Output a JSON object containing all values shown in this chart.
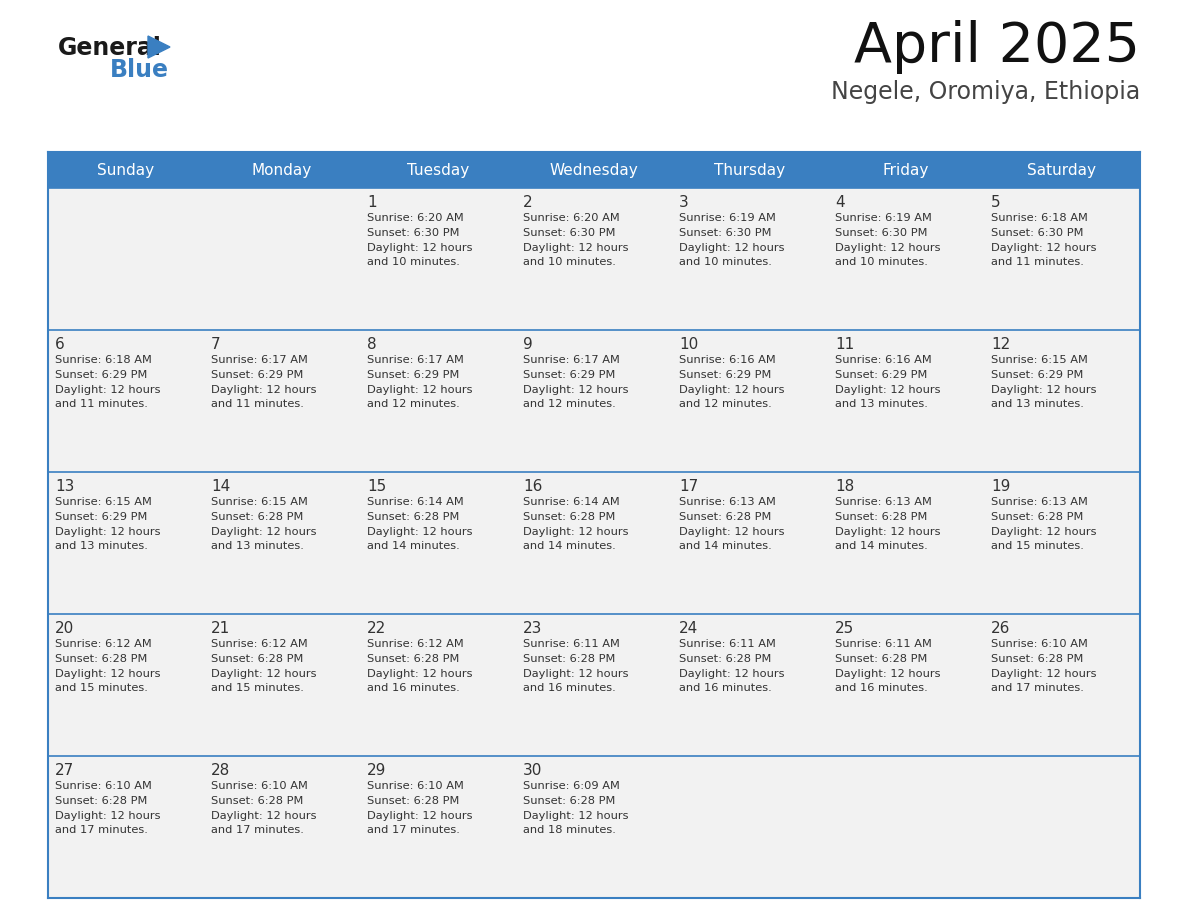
{
  "title": "April 2025",
  "subtitle": "Negele, Oromiya, Ethiopia",
  "header_bg_color": "#3a7fc1",
  "header_text_color": "#ffffff",
  "cell_bg_color": "#f2f2f2",
  "cell_text_color": "#333333",
  "border_color": "#3a7fc1",
  "days_of_week": [
    "Sunday",
    "Monday",
    "Tuesday",
    "Wednesday",
    "Thursday",
    "Friday",
    "Saturday"
  ],
  "calendar": [
    [
      {
        "day": "",
        "info": ""
      },
      {
        "day": "",
        "info": ""
      },
      {
        "day": "1",
        "info": "Sunrise: 6:20 AM\nSunset: 6:30 PM\nDaylight: 12 hours\nand 10 minutes."
      },
      {
        "day": "2",
        "info": "Sunrise: 6:20 AM\nSunset: 6:30 PM\nDaylight: 12 hours\nand 10 minutes."
      },
      {
        "day": "3",
        "info": "Sunrise: 6:19 AM\nSunset: 6:30 PM\nDaylight: 12 hours\nand 10 minutes."
      },
      {
        "day": "4",
        "info": "Sunrise: 6:19 AM\nSunset: 6:30 PM\nDaylight: 12 hours\nand 10 minutes."
      },
      {
        "day": "5",
        "info": "Sunrise: 6:18 AM\nSunset: 6:30 PM\nDaylight: 12 hours\nand 11 minutes."
      }
    ],
    [
      {
        "day": "6",
        "info": "Sunrise: 6:18 AM\nSunset: 6:29 PM\nDaylight: 12 hours\nand 11 minutes."
      },
      {
        "day": "7",
        "info": "Sunrise: 6:17 AM\nSunset: 6:29 PM\nDaylight: 12 hours\nand 11 minutes."
      },
      {
        "day": "8",
        "info": "Sunrise: 6:17 AM\nSunset: 6:29 PM\nDaylight: 12 hours\nand 12 minutes."
      },
      {
        "day": "9",
        "info": "Sunrise: 6:17 AM\nSunset: 6:29 PM\nDaylight: 12 hours\nand 12 minutes."
      },
      {
        "day": "10",
        "info": "Sunrise: 6:16 AM\nSunset: 6:29 PM\nDaylight: 12 hours\nand 12 minutes."
      },
      {
        "day": "11",
        "info": "Sunrise: 6:16 AM\nSunset: 6:29 PM\nDaylight: 12 hours\nand 13 minutes."
      },
      {
        "day": "12",
        "info": "Sunrise: 6:15 AM\nSunset: 6:29 PM\nDaylight: 12 hours\nand 13 minutes."
      }
    ],
    [
      {
        "day": "13",
        "info": "Sunrise: 6:15 AM\nSunset: 6:29 PM\nDaylight: 12 hours\nand 13 minutes."
      },
      {
        "day": "14",
        "info": "Sunrise: 6:15 AM\nSunset: 6:28 PM\nDaylight: 12 hours\nand 13 minutes."
      },
      {
        "day": "15",
        "info": "Sunrise: 6:14 AM\nSunset: 6:28 PM\nDaylight: 12 hours\nand 14 minutes."
      },
      {
        "day": "16",
        "info": "Sunrise: 6:14 AM\nSunset: 6:28 PM\nDaylight: 12 hours\nand 14 minutes."
      },
      {
        "day": "17",
        "info": "Sunrise: 6:13 AM\nSunset: 6:28 PM\nDaylight: 12 hours\nand 14 minutes."
      },
      {
        "day": "18",
        "info": "Sunrise: 6:13 AM\nSunset: 6:28 PM\nDaylight: 12 hours\nand 14 minutes."
      },
      {
        "day": "19",
        "info": "Sunrise: 6:13 AM\nSunset: 6:28 PM\nDaylight: 12 hours\nand 15 minutes."
      }
    ],
    [
      {
        "day": "20",
        "info": "Sunrise: 6:12 AM\nSunset: 6:28 PM\nDaylight: 12 hours\nand 15 minutes."
      },
      {
        "day": "21",
        "info": "Sunrise: 6:12 AM\nSunset: 6:28 PM\nDaylight: 12 hours\nand 15 minutes."
      },
      {
        "day": "22",
        "info": "Sunrise: 6:12 AM\nSunset: 6:28 PM\nDaylight: 12 hours\nand 16 minutes."
      },
      {
        "day": "23",
        "info": "Sunrise: 6:11 AM\nSunset: 6:28 PM\nDaylight: 12 hours\nand 16 minutes."
      },
      {
        "day": "24",
        "info": "Sunrise: 6:11 AM\nSunset: 6:28 PM\nDaylight: 12 hours\nand 16 minutes."
      },
      {
        "day": "25",
        "info": "Sunrise: 6:11 AM\nSunset: 6:28 PM\nDaylight: 12 hours\nand 16 minutes."
      },
      {
        "day": "26",
        "info": "Sunrise: 6:10 AM\nSunset: 6:28 PM\nDaylight: 12 hours\nand 17 minutes."
      }
    ],
    [
      {
        "day": "27",
        "info": "Sunrise: 6:10 AM\nSunset: 6:28 PM\nDaylight: 12 hours\nand 17 minutes."
      },
      {
        "day": "28",
        "info": "Sunrise: 6:10 AM\nSunset: 6:28 PM\nDaylight: 12 hours\nand 17 minutes."
      },
      {
        "day": "29",
        "info": "Sunrise: 6:10 AM\nSunset: 6:28 PM\nDaylight: 12 hours\nand 17 minutes."
      },
      {
        "day": "30",
        "info": "Sunrise: 6:09 AM\nSunset: 6:28 PM\nDaylight: 12 hours\nand 18 minutes."
      },
      {
        "day": "",
        "info": ""
      },
      {
        "day": "",
        "info": ""
      },
      {
        "day": "",
        "info": ""
      }
    ]
  ],
  "logo_color_general": "#1a1a1a",
  "logo_color_blue": "#3a7fc1",
  "logo_triangle_color": "#3a7fc1",
  "fig_width": 11.88,
  "fig_height": 9.18,
  "dpi": 100
}
